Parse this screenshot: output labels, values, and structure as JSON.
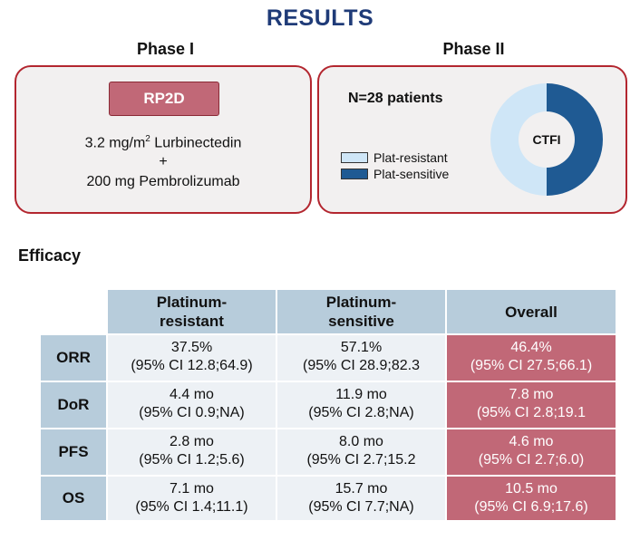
{
  "title": "RESULTS",
  "phase1": {
    "label": "Phase I",
    "rp2d": "RP2D",
    "dose_line1_a": "3.2 mg/m",
    "dose_line1_sup": "2",
    "dose_line1_b": " Lurbinectedin",
    "dose_plus": "+",
    "dose_line2": "200 mg Pembrolizumab"
  },
  "phase2": {
    "label": "Phase II",
    "n_patients": "N=28 patients",
    "donut_label": "CTFI",
    "legend": [
      {
        "label": "Plat-resistant",
        "color": "#cfe6f7"
      },
      {
        "label": "Plat-sensitive",
        "color": "#1f5a93"
      }
    ],
    "donut_fractions": {
      "plat_resistant": 0.5,
      "plat_sensitive": 0.5
    }
  },
  "efficacy": {
    "heading": "Efficacy",
    "columns": [
      "Platinum-\nresistant",
      "Platinum-\nsensitive",
      "Overall"
    ],
    "rows": [
      {
        "label": "ORR",
        "cells": [
          [
            "37.5%",
            "(95% CI 12.8;64.9)"
          ],
          [
            "57.1%",
            "(95% CI 28.9;82.3"
          ],
          [
            "46.4%",
            "(95% CI 27.5;66.1)"
          ]
        ]
      },
      {
        "label": "DoR",
        "cells": [
          [
            "4.4 mo",
            "(95% CI 0.9;NA)"
          ],
          [
            "11.9 mo",
            "(95% CI 2.8;NA)"
          ],
          [
            "7.8 mo",
            "(95% CI 2.8;19.1"
          ]
        ]
      },
      {
        "label": "PFS",
        "cells": [
          [
            "2.8 mo",
            "(95% CI 1.2;5.6)"
          ],
          [
            "8.0 mo",
            "(95% CI 2.7;15.2"
          ],
          [
            "4.6 mo",
            "(95% CI 2.7;6.0)"
          ]
        ]
      },
      {
        "label": "OS",
        "cells": [
          [
            "7.1 mo",
            "(95% CI 1.4;11.1)"
          ],
          [
            "15.7 mo",
            "(95% CI 7.7;NA)"
          ],
          [
            "10.5 mo",
            "(95% CI 6.9;17.6)"
          ]
        ]
      }
    ]
  },
  "colors": {
    "title": "#1f3b78",
    "panel_border": "#b3262f",
    "overall_fill": "#c16877",
    "header_fill": "#b7ccdb",
    "cell_fill": "#edf1f5"
  }
}
